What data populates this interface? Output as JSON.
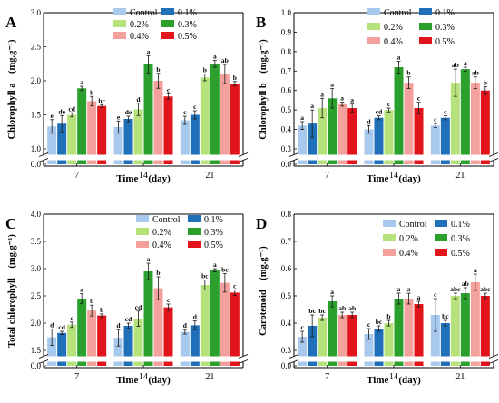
{
  "figure": {
    "legend_labels": [
      "Control",
      "0.1%",
      "0.2%",
      "0.3%",
      "0.4%",
      "0.5%"
    ],
    "colors": [
      "#a8c9ee",
      "#1f6fb9",
      "#b5e27b",
      "#2ba02c",
      "#f4a09c",
      "#e0141a"
    ],
    "error_color": "#1a1a1a"
  },
  "chart_data": [
    {
      "panel_label": "A",
      "type": "bar",
      "title": "",
      "xlabel": "Time　(day)",
      "ylabel": "Chlorophyll a　(mg.g⁻¹)",
      "categories": [
        "7",
        "14",
        "21"
      ],
      "ylim": [
        0,
        3.0
      ],
      "axis_break": [
        0.05,
        1.0
      ],
      "yticks": [
        "0.0",
        "1.0",
        "1.5",
        "2.0",
        "2.5",
        "3.0"
      ],
      "grid": false,
      "legend_position": "top",
      "series": [
        {
          "name": "Control",
          "values": [
            1.33,
            1.32,
            1.42
          ],
          "errors": [
            0.1,
            0.09,
            0.06
          ],
          "letters": [
            "e",
            "e",
            "c"
          ]
        },
        {
          "name": "0.1%",
          "values": [
            1.37,
            1.44,
            1.5
          ],
          "errors": [
            0.12,
            0.04,
            0.06
          ],
          "letters": [
            "de",
            "de",
            "c"
          ]
        },
        {
          "name": "0.2%",
          "values": [
            1.5,
            1.58,
            2.05
          ],
          "errors": [
            0.03,
            0.09,
            0.05
          ],
          "letters": [
            "cd",
            "d",
            "b"
          ]
        },
        {
          "name": "0.3%",
          "values": [
            1.89,
            2.24,
            2.25
          ],
          "errors": [
            0.03,
            0.13,
            0.05
          ],
          "letters": [
            "a",
            "a",
            "a"
          ]
        },
        {
          "name": "0.4%",
          "values": [
            1.7,
            2.0,
            2.1
          ],
          "errors": [
            0.07,
            0.11,
            0.14
          ],
          "letters": [
            "b",
            "b",
            "ab"
          ]
        },
        {
          "name": "0.5%",
          "values": [
            1.63,
            1.77,
            1.96
          ],
          "errors": [
            0.02,
            0.04,
            0.03
          ],
          "letters": [
            "bc",
            "c",
            "b"
          ]
        }
      ]
    },
    {
      "panel_label": "B",
      "type": "bar",
      "title": "",
      "xlabel": "Time　(day)",
      "ylabel": "Chlorophyll b　(mg.g⁻¹)",
      "categories": [
        "7",
        "14",
        "21"
      ],
      "ylim": [
        0,
        1.0
      ],
      "axis_break": [
        0.02,
        0.3
      ],
      "yticks": [
        "0.0",
        "0.3",
        "0.4",
        "0.5",
        "0.6",
        "0.7",
        "0.8",
        "0.9",
        "1.0"
      ],
      "grid": false,
      "legend_position": "top-right",
      "series": [
        {
          "name": "Control",
          "values": [
            0.42,
            0.4,
            0.42
          ],
          "errors": [
            0.02,
            0.02,
            0.01
          ],
          "letters": [
            "a",
            "d",
            "c"
          ]
        },
        {
          "name": "0.1%",
          "values": [
            0.43,
            0.46,
            0.46
          ],
          "errors": [
            0.07,
            0.01,
            0.01
          ],
          "letters": [
            "a",
            "cd",
            "c"
          ]
        },
        {
          "name": "0.2%",
          "values": [
            0.51,
            0.5,
            0.64
          ],
          "errors": [
            0.05,
            0.01,
            0.07
          ],
          "letters": [
            "a",
            "c",
            "ab"
          ]
        },
        {
          "name": "0.3%",
          "values": [
            0.56,
            0.72,
            0.71
          ],
          "errors": [
            0.05,
            0.03,
            0.01
          ],
          "letters": [
            "a",
            "a",
            "a"
          ]
        },
        {
          "name": "0.4%",
          "values": [
            0.53,
            0.64,
            0.64
          ],
          "errors": [
            0.01,
            0.03,
            0.03
          ],
          "letters": [
            "a",
            "b",
            "ab"
          ]
        },
        {
          "name": "0.5%",
          "values": [
            0.51,
            0.51,
            0.6
          ],
          "errors": [
            0.02,
            0.03,
            0.02
          ],
          "letters": [
            "a",
            "c",
            "b"
          ]
        }
      ]
    },
    {
      "panel_label": "C",
      "type": "bar",
      "title": "",
      "xlabel": "Time　(day)",
      "ylabel": "Total chlorophyll　(mg.g⁻¹)",
      "categories": [
        "7",
        "14",
        "21"
      ],
      "ylim": [
        0,
        4.0
      ],
      "axis_break": [
        0.05,
        1.5
      ],
      "yticks": [
        "0.0",
        "1.5",
        "2.0",
        "2.5",
        "3.0",
        "3.5",
        "4.0"
      ],
      "grid": false,
      "legend_position": "top",
      "series": [
        {
          "name": "Control",
          "values": [
            1.74,
            1.73,
            1.84
          ],
          "errors": [
            0.15,
            0.15,
            0.04
          ],
          "letters": [
            "d",
            "d",
            "d"
          ]
        },
        {
          "name": "0.1%",
          "values": [
            1.82,
            1.95,
            1.96
          ],
          "errors": [
            0.03,
            0.05,
            0.08
          ],
          "letters": [
            "cd",
            "cd",
            "d"
          ]
        },
        {
          "name": "0.2%",
          "values": [
            1.97,
            2.08,
            2.7
          ],
          "errors": [
            0.05,
            0.14,
            0.09
          ],
          "letters": [
            "c",
            "cd",
            "bc"
          ]
        },
        {
          "name": "0.3%",
          "values": [
            2.45,
            2.95,
            2.97
          ],
          "errors": [
            0.09,
            0.15,
            0.03
          ],
          "letters": [
            "a",
            "a",
            "a"
          ]
        },
        {
          "name": "0.4%",
          "values": [
            2.23,
            2.64,
            2.74
          ],
          "errors": [
            0.1,
            0.21,
            0.17
          ],
          "letters": [
            "b",
            "b",
            "bc"
          ]
        },
        {
          "name": "0.5%",
          "values": [
            2.14,
            2.29,
            2.56
          ],
          "errors": [
            0.03,
            0.06,
            0.05
          ],
          "letters": [
            "b",
            "c",
            "c"
          ]
        }
      ]
    },
    {
      "panel_label": "D",
      "type": "bar",
      "title": "",
      "xlabel": "Time　(day)",
      "ylabel": "Carotenoid　(mg.g⁻¹)",
      "categories": [
        "7",
        "14",
        "21"
      ],
      "ylim": [
        0,
        0.8
      ],
      "axis_break": [
        0.02,
        0.3
      ],
      "yticks": [
        "0.0",
        "0.3",
        "0.4",
        "0.5",
        "0.6",
        "0.7",
        "0.8"
      ],
      "grid": false,
      "legend_position": "top-right",
      "series": [
        {
          "name": "Control",
          "values": [
            0.35,
            0.36,
            0.43
          ],
          "errors": [
            0.02,
            0.02,
            0.06
          ],
          "letters": [
            "c",
            "c",
            "c"
          ]
        },
        {
          "name": "0.1%",
          "values": [
            0.39,
            0.38,
            0.4
          ],
          "errors": [
            0.04,
            0.01,
            0.01
          ],
          "letters": [
            "bc",
            "bc",
            "bc"
          ]
        },
        {
          "name": "0.2%",
          "values": [
            0.42,
            0.4,
            0.5
          ],
          "errors": [
            0.01,
            0.01,
            0.01
          ],
          "letters": [
            "bc",
            "b",
            "abc"
          ]
        },
        {
          "name": "0.3%",
          "values": [
            0.48,
            0.49,
            0.51
          ],
          "errors": [
            0.02,
            0.02,
            0.02
          ],
          "letters": [
            "a",
            "a",
            "ab"
          ]
        },
        {
          "name": "0.4%",
          "values": [
            0.43,
            0.49,
            0.55
          ],
          "errors": [
            0.01,
            0.02,
            0.03
          ],
          "letters": [
            "ab",
            "a",
            "a"
          ]
        },
        {
          "name": "0.5%",
          "values": [
            0.43,
            0.47,
            0.5
          ],
          "errors": [
            0.01,
            0.01,
            0.01
          ],
          "letters": [
            "ab",
            "a",
            "abc"
          ]
        }
      ]
    }
  ]
}
